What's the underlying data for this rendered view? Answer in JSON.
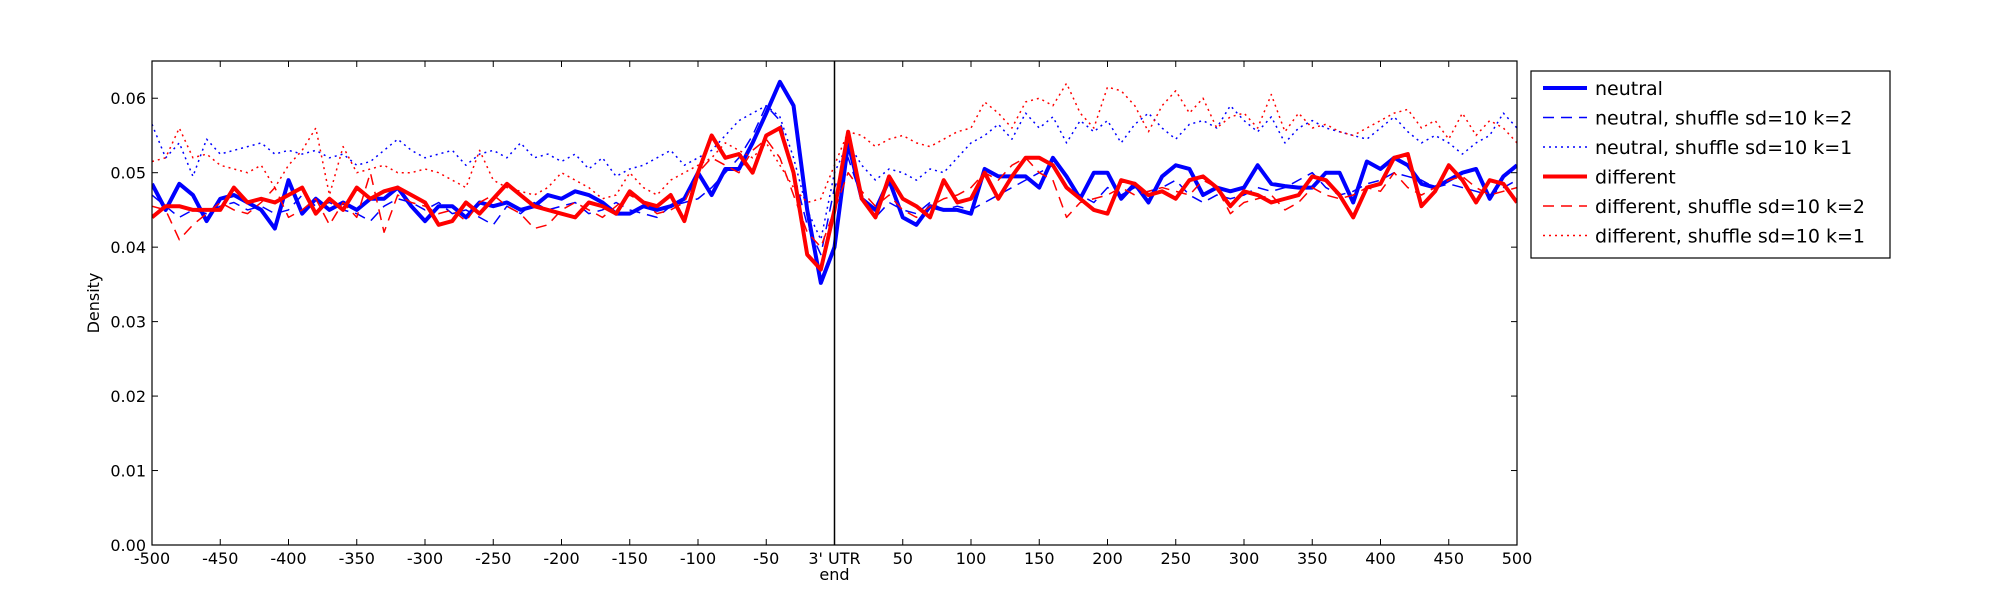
{
  "chart_data": {
    "type": "line",
    "title": "",
    "xlabel": "",
    "ylabel": "Density",
    "xlim": [
      -500,
      500
    ],
    "ylim": [
      0.0,
      0.065
    ],
    "grid": false,
    "legend_position": "outside-right-top",
    "vline": {
      "x": 0,
      "color": "#000000"
    },
    "x_ticks": [
      -500,
      -450,
      -400,
      -350,
      -300,
      -250,
      -200,
      -150,
      -100,
      -50,
      0,
      50,
      100,
      150,
      200,
      250,
      300,
      350,
      400,
      450,
      500
    ],
    "x_tick_labels": [
      "-500",
      "-450",
      "-400",
      "-350",
      "-300",
      "-250",
      "-200",
      "-150",
      "-100",
      "-50",
      "3' UTR",
      "50",
      "100",
      "150",
      "200",
      "250",
      "300",
      "350",
      "400",
      "450",
      "500"
    ],
    "x_tick_label_extra": {
      "at": 0,
      "text": "end"
    },
    "y_ticks": [
      0.0,
      0.01,
      0.02,
      0.03,
      0.04,
      0.05,
      0.06
    ],
    "y_tick_labels": [
      "0.00",
      "0.01",
      "0.02",
      "0.03",
      "0.04",
      "0.05",
      "0.06"
    ],
    "x": [
      -500,
      -490,
      -480,
      -470,
      -460,
      -450,
      -440,
      -430,
      -420,
      -410,
      -400,
      -390,
      -380,
      -370,
      -360,
      -350,
      -340,
      -330,
      -320,
      -310,
      -300,
      -290,
      -280,
      -270,
      -260,
      -250,
      -240,
      -230,
      -220,
      -210,
      -200,
      -190,
      -180,
      -170,
      -160,
      -150,
      -140,
      -130,
      -120,
      -110,
      -100,
      -90,
      -80,
      -70,
      -60,
      -50,
      -40,
      -30,
      -20,
      -10,
      0,
      10,
      20,
      30,
      40,
      50,
      60,
      70,
      80,
      90,
      100,
      110,
      120,
      130,
      140,
      150,
      160,
      170,
      180,
      190,
      200,
      210,
      220,
      230,
      240,
      250,
      260,
      270,
      280,
      290,
      300,
      310,
      320,
      330,
      340,
      350,
      360,
      370,
      380,
      390,
      400,
      410,
      420,
      430,
      440,
      450,
      460,
      470,
      480,
      490,
      500
    ],
    "series": [
      {
        "name": "neutral",
        "color": "#0000ff",
        "style": "solid",
        "width": 4,
        "values": [
          0.0485,
          0.045,
          0.0485,
          0.047,
          0.0435,
          0.0465,
          0.047,
          0.046,
          0.045,
          0.0425,
          0.049,
          0.0445,
          0.0465,
          0.045,
          0.046,
          0.045,
          0.0465,
          0.0465,
          0.048,
          0.0455,
          0.0435,
          0.0455,
          0.0455,
          0.044,
          0.046,
          0.0455,
          0.046,
          0.045,
          0.0455,
          0.047,
          0.0465,
          0.0475,
          0.047,
          0.046,
          0.0445,
          0.0445,
          0.0455,
          0.045,
          0.0455,
          0.0465,
          0.05,
          0.047,
          0.0505,
          0.0505,
          0.054,
          0.058,
          0.0622,
          0.059,
          0.045,
          0.0352,
          0.04,
          0.054,
          0.0465,
          0.045,
          0.049,
          0.044,
          0.043,
          0.0455,
          0.045,
          0.045,
          0.0445,
          0.0505,
          0.0495,
          0.0495,
          0.0495,
          0.048,
          0.052,
          0.0495,
          0.0465,
          0.05,
          0.05,
          0.0465,
          0.0485,
          0.046,
          0.0495,
          0.051,
          0.0505,
          0.047,
          0.048,
          0.0475,
          0.048,
          0.051,
          0.0485,
          0.0482,
          0.048,
          0.048,
          0.05,
          0.05,
          0.046,
          0.0515,
          0.0505,
          0.052,
          0.051,
          0.0485,
          0.048,
          0.049,
          0.05,
          0.0505,
          0.0465,
          0.0495,
          0.051
        ]
      },
      {
        "name": "neutral, shuffle sd=10 k=2",
        "color": "#0000ff",
        "style": "dashed",
        "width": 1.5,
        "values": [
          0.047,
          0.0455,
          0.044,
          0.045,
          0.0445,
          0.0455,
          0.046,
          0.045,
          0.0455,
          0.0445,
          0.045,
          0.047,
          0.0455,
          0.046,
          0.045,
          0.0445,
          0.0435,
          0.0455,
          0.0465,
          0.046,
          0.045,
          0.046,
          0.0445,
          0.045,
          0.044,
          0.043,
          0.0455,
          0.0445,
          0.046,
          0.045,
          0.0455,
          0.046,
          0.0445,
          0.045,
          0.046,
          0.045,
          0.0445,
          0.044,
          0.0455,
          0.046,
          0.0465,
          0.048,
          0.05,
          0.052,
          0.055,
          0.059,
          0.057,
          0.05,
          0.043,
          0.039,
          0.048,
          0.052,
          0.0465,
          0.044,
          0.046,
          0.045,
          0.0445,
          0.046,
          0.045,
          0.0455,
          0.045,
          0.046,
          0.047,
          0.048,
          0.049,
          0.05,
          0.051,
          0.048,
          0.047,
          0.046,
          0.048,
          0.047,
          0.048,
          0.0475,
          0.048,
          0.049,
          0.047,
          0.046,
          0.047,
          0.0465,
          0.047,
          0.048,
          0.0475,
          0.048,
          0.049,
          0.05,
          0.048,
          0.047,
          0.0475,
          0.0485,
          0.049,
          0.05,
          0.0495,
          0.049,
          0.048,
          0.0485,
          0.048,
          0.0475,
          0.047,
          0.048,
          0.049
        ]
      },
      {
        "name": "neutral, shuffle sd=10 k=1",
        "color": "#0000ff",
        "style": "dotted",
        "width": 1.5,
        "values": [
          0.0565,
          0.052,
          0.054,
          0.0495,
          0.0545,
          0.0525,
          0.053,
          0.0535,
          0.054,
          0.0525,
          0.053,
          0.0525,
          0.053,
          0.052,
          0.0525,
          0.051,
          0.0515,
          0.053,
          0.0545,
          0.053,
          0.052,
          0.0525,
          0.053,
          0.051,
          0.0525,
          0.053,
          0.052,
          0.054,
          0.052,
          0.0525,
          0.0515,
          0.0525,
          0.0505,
          0.052,
          0.0495,
          0.0505,
          0.051,
          0.052,
          0.053,
          0.051,
          0.052,
          0.053,
          0.055,
          0.057,
          0.058,
          0.059,
          0.0575,
          0.052,
          0.045,
          0.041,
          0.05,
          0.054,
          0.051,
          0.049,
          0.0505,
          0.05,
          0.049,
          0.0505,
          0.05,
          0.052,
          0.054,
          0.055,
          0.0565,
          0.0545,
          0.058,
          0.056,
          0.0575,
          0.054,
          0.057,
          0.0555,
          0.057,
          0.054,
          0.0565,
          0.058,
          0.056,
          0.0545,
          0.0565,
          0.057,
          0.056,
          0.059,
          0.057,
          0.0555,
          0.0575,
          0.054,
          0.056,
          0.057,
          0.056,
          0.0555,
          0.055,
          0.0545,
          0.056,
          0.0575,
          0.0555,
          0.054,
          0.055,
          0.054,
          0.0525,
          0.054,
          0.055,
          0.058,
          0.056
        ]
      },
      {
        "name": "different",
        "color": "#ff0000",
        "style": "solid",
        "width": 4,
        "values": [
          0.044,
          0.0455,
          0.0455,
          0.045,
          0.045,
          0.045,
          0.048,
          0.046,
          0.0465,
          0.046,
          0.047,
          0.048,
          0.0445,
          0.0465,
          0.045,
          0.048,
          0.0465,
          0.0475,
          0.048,
          0.047,
          0.046,
          0.043,
          0.0435,
          0.046,
          0.0445,
          0.0465,
          0.0485,
          0.047,
          0.0455,
          0.045,
          0.0445,
          0.044,
          0.046,
          0.0455,
          0.0445,
          0.0475,
          0.046,
          0.0455,
          0.047,
          0.0435,
          0.05,
          0.055,
          0.052,
          0.0525,
          0.05,
          0.055,
          0.056,
          0.05,
          0.039,
          0.037,
          0.045,
          0.0555,
          0.0465,
          0.044,
          0.0495,
          0.0465,
          0.0455,
          0.044,
          0.049,
          0.046,
          0.0465,
          0.05,
          0.0465,
          0.0495,
          0.052,
          0.052,
          0.051,
          0.048,
          0.0465,
          0.045,
          0.0445,
          0.049,
          0.0485,
          0.047,
          0.0475,
          0.0465,
          0.049,
          0.0495,
          0.048,
          0.0455,
          0.0475,
          0.047,
          0.046,
          0.0465,
          0.047,
          0.0495,
          0.049,
          0.047,
          0.044,
          0.048,
          0.0485,
          0.052,
          0.0525,
          0.0455,
          0.0475,
          0.051,
          0.049,
          0.046,
          0.049,
          0.0485,
          0.046
        ]
      },
      {
        "name": "different, shuffle sd=10 k=2",
        "color": "#ff0000",
        "style": "dashed",
        "width": 1.5,
        "values": [
          0.0455,
          0.045,
          0.041,
          0.043,
          0.0445,
          0.046,
          0.045,
          0.0445,
          0.046,
          0.048,
          0.044,
          0.045,
          0.0465,
          0.043,
          0.046,
          0.044,
          0.05,
          0.042,
          0.047,
          0.046,
          0.0455,
          0.0445,
          0.045,
          0.0435,
          0.046,
          0.047,
          0.0455,
          0.0445,
          0.0425,
          0.043,
          0.045,
          0.046,
          0.045,
          0.044,
          0.0455,
          0.047,
          0.046,
          0.0445,
          0.045,
          0.046,
          0.05,
          0.052,
          0.051,
          0.05,
          0.053,
          0.0545,
          0.052,
          0.047,
          0.042,
          0.04,
          0.045,
          0.05,
          0.0475,
          0.0455,
          0.047,
          0.045,
          0.044,
          0.0455,
          0.0465,
          0.047,
          0.048,
          0.05,
          0.049,
          0.051,
          0.052,
          0.05,
          0.049,
          0.044,
          0.046,
          0.0465,
          0.047,
          0.048,
          0.047,
          0.0475,
          0.048,
          0.0475,
          0.047,
          0.049,
          0.048,
          0.0445,
          0.046,
          0.0465,
          0.047,
          0.045,
          0.046,
          0.048,
          0.047,
          0.0465,
          0.047,
          0.048,
          0.0475,
          0.05,
          0.048,
          0.047,
          0.048,
          0.049,
          0.0495,
          0.048,
          0.047,
          0.0475,
          0.048
        ]
      },
      {
        "name": "different, shuffle sd=10 k=1",
        "color": "#ff0000",
        "style": "dotted",
        "width": 1.5,
        "values": [
          0.0515,
          0.052,
          0.056,
          0.052,
          0.0525,
          0.051,
          0.0505,
          0.05,
          0.051,
          0.048,
          0.051,
          0.053,
          0.056,
          0.047,
          0.0535,
          0.05,
          0.0505,
          0.051,
          0.05,
          0.05,
          0.0505,
          0.05,
          0.049,
          0.048,
          0.053,
          0.049,
          0.048,
          0.0475,
          0.047,
          0.048,
          0.05,
          0.049,
          0.048,
          0.0465,
          0.047,
          0.05,
          0.048,
          0.047,
          0.049,
          0.05,
          0.051,
          0.052,
          0.054,
          0.053,
          0.052,
          0.054,
          0.051,
          0.048,
          0.046,
          0.0465,
          0.051,
          0.0555,
          0.055,
          0.0535,
          0.0545,
          0.055,
          0.054,
          0.0535,
          0.0545,
          0.0555,
          0.056,
          0.0595,
          0.058,
          0.056,
          0.0595,
          0.06,
          0.059,
          0.062,
          0.058,
          0.056,
          0.0615,
          0.061,
          0.059,
          0.0555,
          0.059,
          0.061,
          0.058,
          0.06,
          0.056,
          0.0575,
          0.058,
          0.056,
          0.0605,
          0.0555,
          0.058,
          0.056,
          0.0565,
          0.0555,
          0.055,
          0.056,
          0.057,
          0.058,
          0.0585,
          0.056,
          0.057,
          0.0545,
          0.058,
          0.055,
          0.057,
          0.056,
          0.054
        ]
      }
    ]
  }
}
